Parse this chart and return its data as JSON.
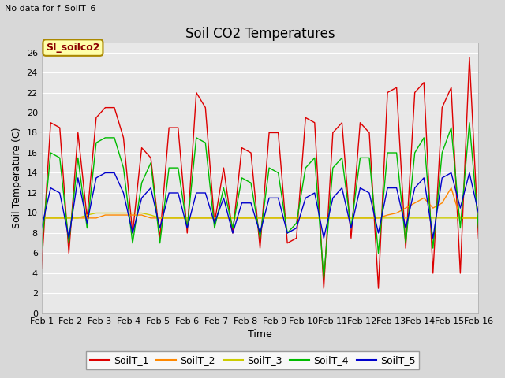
{
  "title": "Soil CO2 Temperatures",
  "xlabel": "Time",
  "ylabel": "Soil Temperature (C)",
  "note": "No data for f_SoilT_6",
  "annotation": "SI_soilco2",
  "x_labels": [
    "Feb 1",
    "Feb 2",
    "Feb 3",
    "Feb 4",
    "Feb 5",
    "Feb 6",
    "Feb 7",
    "Feb 8",
    "Feb 9",
    "Feb 10",
    "Feb 11",
    "Feb 12",
    "Feb 13",
    "Feb 14",
    "Feb 15",
    "Feb 16"
  ],
  "ylim": [
    0,
    27
  ],
  "yticks": [
    0,
    2,
    4,
    6,
    8,
    10,
    12,
    14,
    16,
    18,
    20,
    22,
    24,
    26
  ],
  "series_order": [
    "SoilT_1",
    "SoilT_2",
    "SoilT_3",
    "SoilT_4",
    "SoilT_5"
  ],
  "series": {
    "SoilT_1": {
      "color": "#dd0000",
      "values": [
        4.5,
        19.0,
        18.5,
        6.0,
        18.0,
        9.5,
        19.5,
        20.5,
        20.5,
        17.5,
        8.0,
        16.5,
        15.5,
        7.5,
        18.5,
        18.5,
        8.0,
        22.0,
        20.5,
        9.0,
        14.5,
        8.0,
        16.5,
        16.0,
        6.5,
        18.0,
        18.0,
        7.0,
        7.5,
        19.5,
        19.0,
        2.5,
        18.0,
        19.0,
        7.5,
        19.0,
        18.0,
        2.5,
        22.0,
        22.5,
        6.5,
        22.0,
        23.0,
        4.0,
        20.5,
        22.5,
        4.0,
        25.5,
        7.5
      ]
    },
    "SoilT_2": {
      "color": "#ff8800",
      "values": [
        9.5,
        9.5,
        9.5,
        9.5,
        9.5,
        9.5,
        9.5,
        9.8,
        9.8,
        9.8,
        9.8,
        9.8,
        9.5,
        9.5,
        9.5,
        9.5,
        9.5,
        9.5,
        9.5,
        9.5,
        9.5,
        9.5,
        9.5,
        9.5,
        9.5,
        9.5,
        9.5,
        9.5,
        9.5,
        9.5,
        9.5,
        9.5,
        9.5,
        9.5,
        9.5,
        9.5,
        9.5,
        9.5,
        9.8,
        10.0,
        10.5,
        11.0,
        11.5,
        10.5,
        11.0,
        12.5,
        9.5,
        9.5,
        9.5
      ]
    },
    "SoilT_3": {
      "color": "#cccc00",
      "values": [
        9.5,
        9.5,
        9.5,
        9.5,
        9.5,
        9.8,
        10.0,
        10.0,
        10.0,
        10.0,
        10.0,
        10.0,
        9.8,
        9.5,
        9.5,
        9.5,
        9.5,
        9.5,
        9.5,
        9.5,
        9.5,
        9.5,
        9.5,
        9.5,
        9.5,
        9.5,
        9.5,
        9.5,
        9.5,
        9.5,
        9.5,
        9.5,
        9.5,
        9.5,
        9.5,
        9.5,
        9.5,
        9.5,
        9.5,
        9.5,
        9.5,
        9.5,
        9.5,
        9.5,
        9.5,
        9.5,
        9.5,
        9.5,
        9.5
      ]
    },
    "SoilT_4": {
      "color": "#00bb00",
      "values": [
        6.5,
        16.0,
        15.5,
        7.0,
        15.5,
        8.5,
        17.0,
        17.5,
        17.5,
        14.5,
        7.0,
        13.0,
        15.0,
        7.0,
        14.5,
        14.5,
        8.5,
        17.5,
        17.0,
        8.5,
        12.5,
        8.5,
        13.5,
        13.0,
        7.5,
        14.5,
        14.0,
        8.0,
        9.0,
        14.5,
        15.5,
        3.5,
        14.5,
        15.5,
        8.5,
        15.5,
        15.5,
        6.0,
        16.0,
        16.0,
        7.0,
        16.0,
        17.5,
        6.5,
        16.0,
        18.5,
        8.5,
        19.0,
        8.5
      ]
    },
    "SoilT_5": {
      "color": "#0000cc",
      "values": [
        8.5,
        12.5,
        12.0,
        7.5,
        13.5,
        9.0,
        13.5,
        14.0,
        14.0,
        12.0,
        8.0,
        11.5,
        12.5,
        8.5,
        12.0,
        12.0,
        8.5,
        12.0,
        12.0,
        9.0,
        11.5,
        8.0,
        11.0,
        11.0,
        8.0,
        11.5,
        11.5,
        8.0,
        8.5,
        11.5,
        12.0,
        7.5,
        11.5,
        12.5,
        8.5,
        12.5,
        12.0,
        8.0,
        12.5,
        12.5,
        8.5,
        12.5,
        13.5,
        7.5,
        13.5,
        14.0,
        10.5,
        14.0,
        10.0
      ]
    }
  },
  "n_points": 49,
  "n_days": 15,
  "fig_bg_color": "#d8d8d8",
  "plot_bg_color": "#e8e8e8",
  "grid_color": "#ffffff",
  "title_fontsize": 12,
  "axis_label_fontsize": 9,
  "tick_fontsize": 8,
  "legend_fontsize": 9,
  "note_fontsize": 8,
  "annot_fontsize": 9
}
